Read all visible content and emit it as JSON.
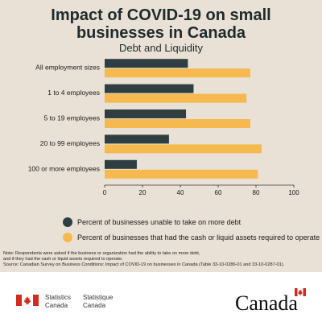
{
  "chart_data": {
    "type": "bar",
    "orientation": "horizontal",
    "title_line1": "Impact of COVID-19 on small",
    "title_line2": "businesses in Canada",
    "subtitle": "Debt and Liquidity",
    "categories": [
      "All employment sizes",
      "1 to 4 employees",
      "5 to 19 employees",
      "20 to 99 employees",
      "100 or more employees"
    ],
    "series": [
      {
        "name": "Percent of businesses unable to take on more debt",
        "color": "#2f3f41",
        "values": [
          44,
          47,
          43,
          34,
          17
        ]
      },
      {
        "name": "Percent of businesses that had the cash or liquid assets required to operate",
        "color": "#f5b94f",
        "values": [
          77,
          75,
          77,
          83,
          81
        ]
      }
    ],
    "xlim": [
      0,
      100
    ],
    "xticks": [
      "0",
      "20",
      "40",
      "60",
      "80",
      "100"
    ],
    "grid": false,
    "legend_position": "bottom"
  },
  "note": {
    "line1": "Note: Respondents were asked if the business or organization had the ability to take on more debt,",
    "line2": "and if they had the cash or liquid assets required to operate.",
    "line3": "Source: Canadian Survey on Business Conditions: Impact of COVID-19 on businesses in Canada (Table 33-10-0286-01 and 33-10-0287-01)."
  },
  "footer": {
    "stat_en_line1": "Statistics",
    "stat_en_line2": "Canada",
    "stat_fr_line1": "Statistique",
    "stat_fr_line2": "Canada",
    "wordmark": "Canada"
  }
}
